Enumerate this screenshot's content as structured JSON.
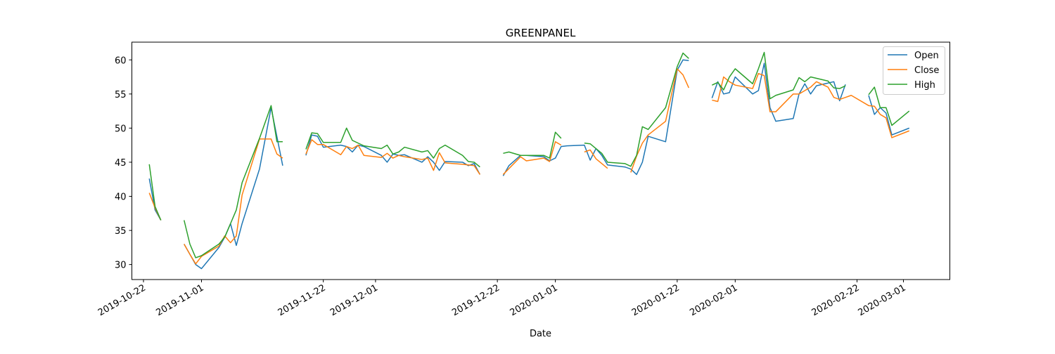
{
  "chart_data": {
    "type": "line",
    "title": "GREENPANEL",
    "xlabel": "Date",
    "ylabel": "",
    "x_axis_type": "date",
    "xlim": [
      "2019-10-20",
      "2020-03-09"
    ],
    "ylim": [
      27.8,
      62.6
    ],
    "yticks": [
      30,
      35,
      40,
      45,
      50,
      55,
      60
    ],
    "xticks": [
      "2019-10-22",
      "2019-11-01",
      "2019-11-22",
      "2019-12-01",
      "2019-12-22",
      "2020-01-01",
      "2020-01-22",
      "2020-02-01",
      "2020-02-22",
      "2020-03-01"
    ],
    "grid": false,
    "legend_position": "top-right",
    "series": [
      {
        "name": "Open",
        "color": "#1f77b4",
        "points": [
          [
            "2019-10-23",
            42.6
          ],
          [
            "2019-10-24",
            38.0
          ],
          [
            "2019-10-25",
            36.5
          ],
          [
            "2019-10-29",
            33.0
          ],
          [
            "2019-10-30",
            31.5
          ],
          [
            "2019-10-31",
            30.0
          ],
          [
            "2019-11-01",
            29.4
          ],
          [
            "2019-11-04",
            32.5
          ],
          [
            "2019-11-05",
            34.0
          ],
          [
            "2019-11-06",
            36.0
          ],
          [
            "2019-11-07",
            32.8
          ],
          [
            "2019-11-08",
            36.0
          ],
          [
            "2019-11-11",
            44.0
          ],
          [
            "2019-11-13",
            53.0
          ],
          [
            "2019-11-15",
            44.5
          ],
          [
            "2019-11-19",
            46.0
          ],
          [
            "2019-11-20",
            49.0
          ],
          [
            "2019-11-21",
            48.8
          ],
          [
            "2019-11-22",
            47.2
          ],
          [
            "2019-11-25",
            47.5
          ],
          [
            "2019-11-26",
            47.3
          ],
          [
            "2019-11-27",
            46.5
          ],
          [
            "2019-11-28",
            47.5
          ],
          [
            "2019-11-29",
            47.3
          ],
          [
            "2019-12-02",
            46.0
          ],
          [
            "2019-12-03",
            45.0
          ],
          [
            "2019-12-04",
            46.2
          ],
          [
            "2019-12-05",
            46.0
          ],
          [
            "2019-12-06",
            46.1
          ],
          [
            "2019-12-09",
            45.0
          ],
          [
            "2019-12-10",
            45.8
          ],
          [
            "2019-12-11",
            45.0
          ],
          [
            "2019-12-12",
            43.8
          ],
          [
            "2019-12-13",
            45.1
          ],
          [
            "2019-12-16",
            45.0
          ],
          [
            "2019-12-17",
            44.5
          ],
          [
            "2019-12-18",
            44.8
          ],
          [
            "2019-12-19",
            43.2
          ],
          [
            "2019-12-23",
            43.0
          ],
          [
            "2019-12-24",
            44.5
          ],
          [
            "2019-12-26",
            46.0
          ],
          [
            "2019-12-27",
            46.0
          ],
          [
            "2019-12-30",
            45.8
          ],
          [
            "2019-12-31",
            45.2
          ],
          [
            "2020-01-01",
            45.6
          ],
          [
            "2020-01-02",
            47.3
          ],
          [
            "2020-01-03",
            47.4
          ],
          [
            "2020-01-06",
            47.5
          ],
          [
            "2020-01-07",
            45.3
          ],
          [
            "2020-01-08",
            47.0
          ],
          [
            "2020-01-09",
            46.0
          ],
          [
            "2020-01-10",
            44.6
          ],
          [
            "2020-01-13",
            44.3
          ],
          [
            "2020-01-14",
            44.0
          ],
          [
            "2020-01-15",
            43.2
          ],
          [
            "2020-01-16",
            45.0
          ],
          [
            "2020-01-17",
            48.8
          ],
          [
            "2020-01-20",
            48.0
          ],
          [
            "2020-01-22",
            58.5
          ],
          [
            "2020-01-23",
            60.0
          ],
          [
            "2020-01-24",
            59.9
          ],
          [
            "2020-01-28",
            54.4
          ],
          [
            "2020-01-29",
            56.8
          ],
          [
            "2020-01-30",
            55.0
          ],
          [
            "2020-01-31",
            55.2
          ],
          [
            "2020-02-01",
            57.5
          ],
          [
            "2020-02-04",
            55.0
          ],
          [
            "2020-02-05",
            55.5
          ],
          [
            "2020-02-06",
            59.5
          ],
          [
            "2020-02-07",
            53.0
          ],
          [
            "2020-02-08",
            51.0
          ],
          [
            "2020-02-11",
            51.4
          ],
          [
            "2020-02-12",
            55.0
          ],
          [
            "2020-02-13",
            56.5
          ],
          [
            "2020-02-14",
            55.0
          ],
          [
            "2020-02-15",
            56.2
          ],
          [
            "2020-02-17",
            56.6
          ],
          [
            "2020-02-18",
            56.8
          ],
          [
            "2020-02-19",
            54.0
          ],
          [
            "2020-02-20",
            56.4
          ],
          [
            "2020-02-24",
            54.8
          ],
          [
            "2020-02-25",
            52.0
          ],
          [
            "2020-02-26",
            53.0
          ],
          [
            "2020-02-27",
            52.2
          ],
          [
            "2020-02-28",
            49.0
          ],
          [
            "2020-03-02",
            50.0
          ]
        ]
      },
      {
        "name": "Close",
        "color": "#ff7f0e",
        "points": [
          [
            "2019-10-23",
            40.5
          ],
          [
            "2019-10-24",
            38.3
          ],
          [
            "2019-10-25",
            36.5
          ],
          [
            "2019-10-29",
            33.0
          ],
          [
            "2019-10-30",
            31.5
          ],
          [
            "2019-10-31",
            30.1
          ],
          [
            "2019-11-01",
            31.2
          ],
          [
            "2019-11-04",
            32.7
          ],
          [
            "2019-11-05",
            34.2
          ],
          [
            "2019-11-06",
            33.2
          ],
          [
            "2019-11-07",
            34.2
          ],
          [
            "2019-11-08",
            40.2
          ],
          [
            "2019-11-11",
            48.4
          ],
          [
            "2019-11-13",
            48.4
          ],
          [
            "2019-11-14",
            46.2
          ],
          [
            "2019-11-15",
            45.6
          ],
          [
            "2019-11-19",
            46.2
          ],
          [
            "2019-11-20",
            48.3
          ],
          [
            "2019-11-21",
            47.6
          ],
          [
            "2019-11-22",
            47.6
          ],
          [
            "2019-11-25",
            46.1
          ],
          [
            "2019-11-26",
            47.3
          ],
          [
            "2019-11-27",
            47.0
          ],
          [
            "2019-11-28",
            47.5
          ],
          [
            "2019-11-29",
            46.0
          ],
          [
            "2019-12-02",
            45.7
          ],
          [
            "2019-12-03",
            46.3
          ],
          [
            "2019-12-04",
            45.6
          ],
          [
            "2019-12-05",
            46.0
          ],
          [
            "2019-12-06",
            45.8
          ],
          [
            "2019-12-09",
            45.4
          ],
          [
            "2019-12-10",
            45.6
          ],
          [
            "2019-12-11",
            43.8
          ],
          [
            "2019-12-12",
            46.4
          ],
          [
            "2019-12-13",
            44.9
          ],
          [
            "2019-12-16",
            44.7
          ],
          [
            "2019-12-18",
            44.5
          ],
          [
            "2019-12-19",
            43.2
          ],
          [
            "2019-12-23",
            43.2
          ],
          [
            "2019-12-26",
            45.8
          ],
          [
            "2019-12-27",
            45.2
          ],
          [
            "2019-12-30",
            45.6
          ],
          [
            "2019-12-31",
            45.1
          ],
          [
            "2020-01-01",
            48.0
          ],
          [
            "2020-01-02",
            47.5
          ],
          [
            "2020-01-06",
            46.5
          ],
          [
            "2020-01-07",
            46.8
          ],
          [
            "2020-01-08",
            45.5
          ],
          [
            "2020-01-10",
            44.1
          ],
          [
            "2020-01-14",
            43.5
          ],
          [
            "2020-01-15",
            45.9
          ],
          [
            "2020-01-16",
            47.8
          ],
          [
            "2020-01-17",
            49.0
          ],
          [
            "2020-01-20",
            51.0
          ],
          [
            "2020-01-22",
            58.7
          ],
          [
            "2020-01-23",
            57.8
          ],
          [
            "2020-01-24",
            55.9
          ],
          [
            "2020-01-28",
            54.1
          ],
          [
            "2020-01-29",
            53.9
          ],
          [
            "2020-01-30",
            57.5
          ],
          [
            "2020-01-31",
            56.8
          ],
          [
            "2020-02-01",
            56.3
          ],
          [
            "2020-02-04",
            55.8
          ],
          [
            "2020-02-05",
            58.0
          ],
          [
            "2020-02-06",
            57.7
          ],
          [
            "2020-02-07",
            52.4
          ],
          [
            "2020-02-08",
            52.4
          ],
          [
            "2020-02-11",
            55.0
          ],
          [
            "2020-02-12",
            55.0
          ],
          [
            "2020-02-13",
            55.5
          ],
          [
            "2020-02-14",
            56.0
          ],
          [
            "2020-02-15",
            56.8
          ],
          [
            "2020-02-17",
            56.0
          ],
          [
            "2020-02-18",
            54.5
          ],
          [
            "2020-02-19",
            54.2
          ],
          [
            "2020-02-20",
            54.5
          ],
          [
            "2020-02-21",
            54.8
          ],
          [
            "2020-02-24",
            53.3
          ],
          [
            "2020-02-25",
            53.2
          ],
          [
            "2020-02-26",
            52.0
          ],
          [
            "2020-02-27",
            51.5
          ],
          [
            "2020-02-28",
            48.6
          ],
          [
            "2020-03-02",
            49.6
          ]
        ]
      },
      {
        "name": "High",
        "color": "#2ca02c",
        "points": [
          [
            "2019-10-23",
            44.7
          ],
          [
            "2019-10-24",
            38.5
          ],
          [
            "2019-10-25",
            36.5
          ],
          [
            "2019-10-29",
            36.5
          ],
          [
            "2019-10-30",
            33.0
          ],
          [
            "2019-10-31",
            31.0
          ],
          [
            "2019-11-01",
            31.3
          ],
          [
            "2019-11-04",
            33.0
          ],
          [
            "2019-11-05",
            34.0
          ],
          [
            "2019-11-06",
            36.0
          ],
          [
            "2019-11-07",
            38.0
          ],
          [
            "2019-11-08",
            42.0
          ],
          [
            "2019-11-11",
            48.5
          ],
          [
            "2019-11-13",
            53.3
          ],
          [
            "2019-11-14",
            48.0
          ],
          [
            "2019-11-15",
            48.0
          ],
          [
            "2019-11-19",
            46.9
          ],
          [
            "2019-11-20",
            49.3
          ],
          [
            "2019-11-21",
            49.2
          ],
          [
            "2019-11-22",
            47.9
          ],
          [
            "2019-11-25",
            47.9
          ],
          [
            "2019-11-26",
            50.0
          ],
          [
            "2019-11-27",
            48.2
          ],
          [
            "2019-11-28",
            47.8
          ],
          [
            "2019-11-29",
            47.4
          ],
          [
            "2019-12-02",
            47.0
          ],
          [
            "2019-12-03",
            47.5
          ],
          [
            "2019-12-04",
            46.2
          ],
          [
            "2019-12-05",
            46.5
          ],
          [
            "2019-12-06",
            47.2
          ],
          [
            "2019-12-09",
            46.5
          ],
          [
            "2019-12-10",
            46.7
          ],
          [
            "2019-12-11",
            45.6
          ],
          [
            "2019-12-12",
            47.0
          ],
          [
            "2019-12-13",
            47.5
          ],
          [
            "2019-12-16",
            46.0
          ],
          [
            "2019-12-17",
            45.1
          ],
          [
            "2019-12-18",
            45.0
          ],
          [
            "2019-12-19",
            44.3
          ],
          [
            "2019-12-23",
            46.3
          ],
          [
            "2019-12-24",
            46.5
          ],
          [
            "2019-12-26",
            46.0
          ],
          [
            "2019-12-27",
            46.0
          ],
          [
            "2019-12-30",
            46.0
          ],
          [
            "2019-12-31",
            45.6
          ],
          [
            "2020-01-01",
            49.4
          ],
          [
            "2020-01-02",
            48.5
          ],
          [
            "2020-01-06",
            47.8
          ],
          [
            "2020-01-07",
            47.7
          ],
          [
            "2020-01-08",
            47.0
          ],
          [
            "2020-01-09",
            46.3
          ],
          [
            "2020-01-10",
            45.0
          ],
          [
            "2020-01-13",
            44.8
          ],
          [
            "2020-01-14",
            44.4
          ],
          [
            "2020-01-15",
            46.0
          ],
          [
            "2020-01-16",
            50.2
          ],
          [
            "2020-01-17",
            49.8
          ],
          [
            "2020-01-20",
            53.0
          ],
          [
            "2020-01-22",
            59.0
          ],
          [
            "2020-01-23",
            61.0
          ],
          [
            "2020-01-24",
            60.2
          ],
          [
            "2020-01-28",
            56.3
          ],
          [
            "2020-01-29",
            56.7
          ],
          [
            "2020-01-30",
            55.6
          ],
          [
            "2020-01-31",
            57.5
          ],
          [
            "2020-02-01",
            58.7
          ],
          [
            "2020-02-04",
            56.5
          ],
          [
            "2020-02-05",
            58.7
          ],
          [
            "2020-02-06",
            61.1
          ],
          [
            "2020-02-07",
            54.3
          ],
          [
            "2020-02-08",
            54.8
          ],
          [
            "2020-02-11",
            55.6
          ],
          [
            "2020-02-12",
            57.4
          ],
          [
            "2020-02-13",
            56.8
          ],
          [
            "2020-02-14",
            57.5
          ],
          [
            "2020-02-17",
            56.9
          ],
          [
            "2020-02-18",
            55.9
          ],
          [
            "2020-02-19",
            55.8
          ],
          [
            "2020-02-20",
            56.2
          ],
          [
            "2020-02-24",
            54.9
          ],
          [
            "2020-02-25",
            56.0
          ],
          [
            "2020-02-26",
            53.0
          ],
          [
            "2020-02-27",
            53.0
          ],
          [
            "2020-02-28",
            50.4
          ],
          [
            "2020-03-02",
            52.5
          ]
        ]
      }
    ]
  }
}
